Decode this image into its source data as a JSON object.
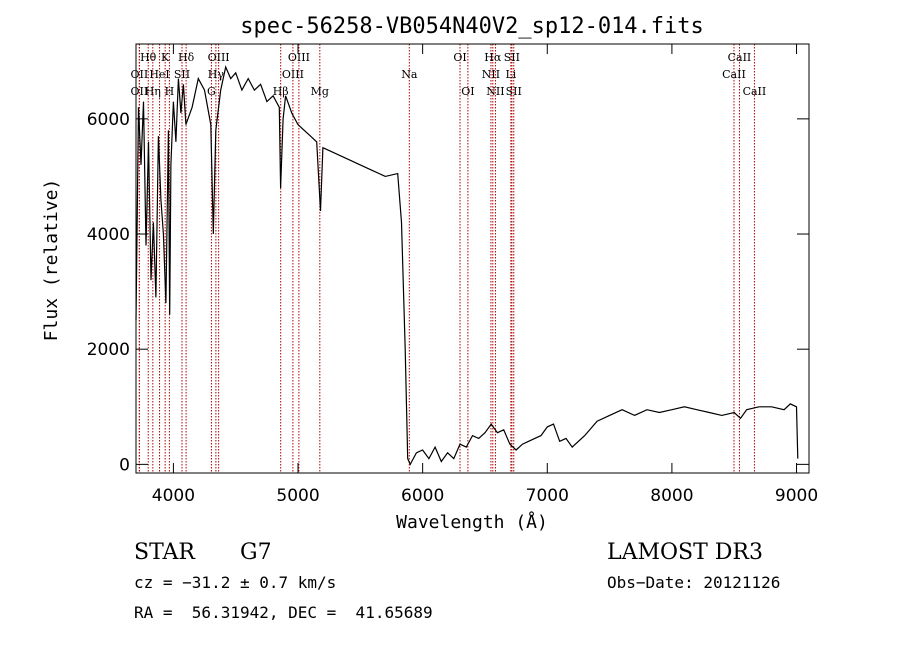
{
  "chart_data": {
    "type": "line",
    "title": "spec-56258-VB054N40V2_sp12-014.fits",
    "xlabel": "Wavelength (Å)",
    "ylabel": "Flux (relative)",
    "xlim": [
      3700,
      9100
    ],
    "ylim": [
      -150,
      7300
    ],
    "xticks": [
      4000,
      5000,
      6000,
      7000,
      8000,
      9000
    ],
    "yticks": [
      0,
      2000,
      4000,
      6000
    ],
    "spectrum_points": [
      [
        3700,
        2500
      ],
      [
        3720,
        6200
      ],
      [
        3740,
        5200
      ],
      [
        3760,
        6300
      ],
      [
        3780,
        3800
      ],
      [
        3800,
        5600
      ],
      [
        3820,
        3200
      ],
      [
        3840,
        4200
      ],
      [
        3860,
        2900
      ],
      [
        3880,
        5700
      ],
      [
        3900,
        4600
      ],
      [
        3920,
        4000
      ],
      [
        3940,
        2800
      ],
      [
        3960,
        5800
      ],
      [
        3970,
        2600
      ],
      [
        3980,
        5200
      ],
      [
        4000,
        6300
      ],
      [
        4020,
        5600
      ],
      [
        4040,
        6700
      ],
      [
        4060,
        6100
      ],
      [
        4080,
        6600
      ],
      [
        4100,
        5900
      ],
      [
        4150,
        6200
      ],
      [
        4200,
        6700
      ],
      [
        4250,
        6500
      ],
      [
        4300,
        5900
      ],
      [
        4320,
        4000
      ],
      [
        4340,
        5800
      ],
      [
        4380,
        6500
      ],
      [
        4420,
        6900
      ],
      [
        4460,
        6700
      ],
      [
        4500,
        6800
      ],
      [
        4550,
        6500
      ],
      [
        4600,
        6700
      ],
      [
        4650,
        6500
      ],
      [
        4700,
        6600
      ],
      [
        4750,
        6300
      ],
      [
        4800,
        6400
      ],
      [
        4850,
        6200
      ],
      [
        4860,
        4800
      ],
      [
        4880,
        6000
      ],
      [
        4900,
        6400
      ],
      [
        4950,
        6100
      ],
      [
        5000,
        5900
      ],
      [
        5050,
        5800
      ],
      [
        5100,
        5700
      ],
      [
        5150,
        5600
      ],
      [
        5180,
        4400
      ],
      [
        5200,
        5500
      ],
      [
        5300,
        5400
      ],
      [
        5400,
        5300
      ],
      [
        5500,
        5200
      ],
      [
        5600,
        5100
      ],
      [
        5700,
        5000
      ],
      [
        5800,
        5050
      ],
      [
        5830,
        4200
      ],
      [
        5860,
        2000
      ],
      [
        5880,
        100
      ],
      [
        5900,
        0
      ],
      [
        5950,
        200
      ],
      [
        6000,
        250
      ],
      [
        6050,
        100
      ],
      [
        6100,
        300
      ],
      [
        6150,
        50
      ],
      [
        6200,
        200
      ],
      [
        6250,
        100
      ],
      [
        6300,
        350
      ],
      [
        6350,
        300
      ],
      [
        6400,
        500
      ],
      [
        6450,
        450
      ],
      [
        6500,
        550
      ],
      [
        6550,
        700
      ],
      [
        6600,
        550
      ],
      [
        6650,
        600
      ],
      [
        6700,
        350
      ],
      [
        6750,
        250
      ],
      [
        6800,
        350
      ],
      [
        6850,
        400
      ],
      [
        6900,
        450
      ],
      [
        6950,
        500
      ],
      [
        7000,
        650
      ],
      [
        7050,
        700
      ],
      [
        7100,
        400
      ],
      [
        7150,
        450
      ],
      [
        7200,
        300
      ],
      [
        7300,
        500
      ],
      [
        7400,
        750
      ],
      [
        7500,
        850
      ],
      [
        7600,
        950
      ],
      [
        7700,
        850
      ],
      [
        7800,
        950
      ],
      [
        7900,
        900
      ],
      [
        8000,
        950
      ],
      [
        8100,
        1000
      ],
      [
        8200,
        950
      ],
      [
        8300,
        900
      ],
      [
        8400,
        850
      ],
      [
        8500,
        900
      ],
      [
        8550,
        800
      ],
      [
        8600,
        950
      ],
      [
        8700,
        1000
      ],
      [
        8800,
        1000
      ],
      [
        8900,
        950
      ],
      [
        8950,
        1050
      ],
      [
        9000,
        1000
      ],
      [
        9010,
        100
      ]
    ],
    "line_markers": [
      {
        "label": "Hθ",
        "wl": 3798,
        "row": 1
      },
      {
        "label": "OII",
        "wl": 3727,
        "row": 2
      },
      {
        "label": "OII",
        "wl": 3727,
        "row": 3
      },
      {
        "label": "Hη",
        "wl": 3835,
        "row": 3
      },
      {
        "label": "HeI",
        "wl": 3889,
        "row": 2
      },
      {
        "label": "K",
        "wl": 3934,
        "row": 1
      },
      {
        "label": "H",
        "wl": 3968,
        "row": 3
      },
      {
        "label": "SII",
        "wl": 4069,
        "row": 2
      },
      {
        "label": "Hδ",
        "wl": 4102,
        "row": 1
      },
      {
        "label": "OIII",
        "wl": 4363,
        "row": 1
      },
      {
        "label": "Hγ",
        "wl": 4341,
        "row": 2
      },
      {
        "label": "G",
        "wl": 4305,
        "row": 3
      },
      {
        "label": "OIII",
        "wl": 5007,
        "row": 1
      },
      {
        "label": "OIII",
        "wl": 4959,
        "row": 2
      },
      {
        "label": "Hβ",
        "wl": 4861,
        "row": 3
      },
      {
        "label": "Mg",
        "wl": 5175,
        "row": 3
      },
      {
        "label": "Na",
        "wl": 5893,
        "row": 2
      },
      {
        "label": "OI",
        "wl": 6300,
        "row": 1
      },
      {
        "label": "OI",
        "wl": 6363,
        "row": 3
      },
      {
        "label": "Hα",
        "wl": 6563,
        "row": 1
      },
      {
        "label": "NII",
        "wl": 6548,
        "row": 2
      },
      {
        "label": "NII",
        "wl": 6584,
        "row": 3
      },
      {
        "label": "SII",
        "wl": 6716,
        "row": 1
      },
      {
        "label": "Li",
        "wl": 6708,
        "row": 2
      },
      {
        "label": "SII",
        "wl": 6731,
        "row": 3
      },
      {
        "label": "CaII",
        "wl": 8542,
        "row": 1
      },
      {
        "label": "CaII",
        "wl": 8498,
        "row": 2
      },
      {
        "label": "CaII",
        "wl": 8662,
        "row": 3
      }
    ]
  },
  "info": {
    "object_class": "STAR",
    "subclass": "G7",
    "survey": "LAMOST DR3",
    "redshift": "cz = −31.2 ± 0.7 km/s",
    "obs_date": "Obs−Date: 20121126",
    "coords": "RA =  56.31942, DEC =  41.65689"
  },
  "colors": {
    "spectrum": "#000000",
    "marker_line": "#b00000",
    "axes": "#000000"
  }
}
